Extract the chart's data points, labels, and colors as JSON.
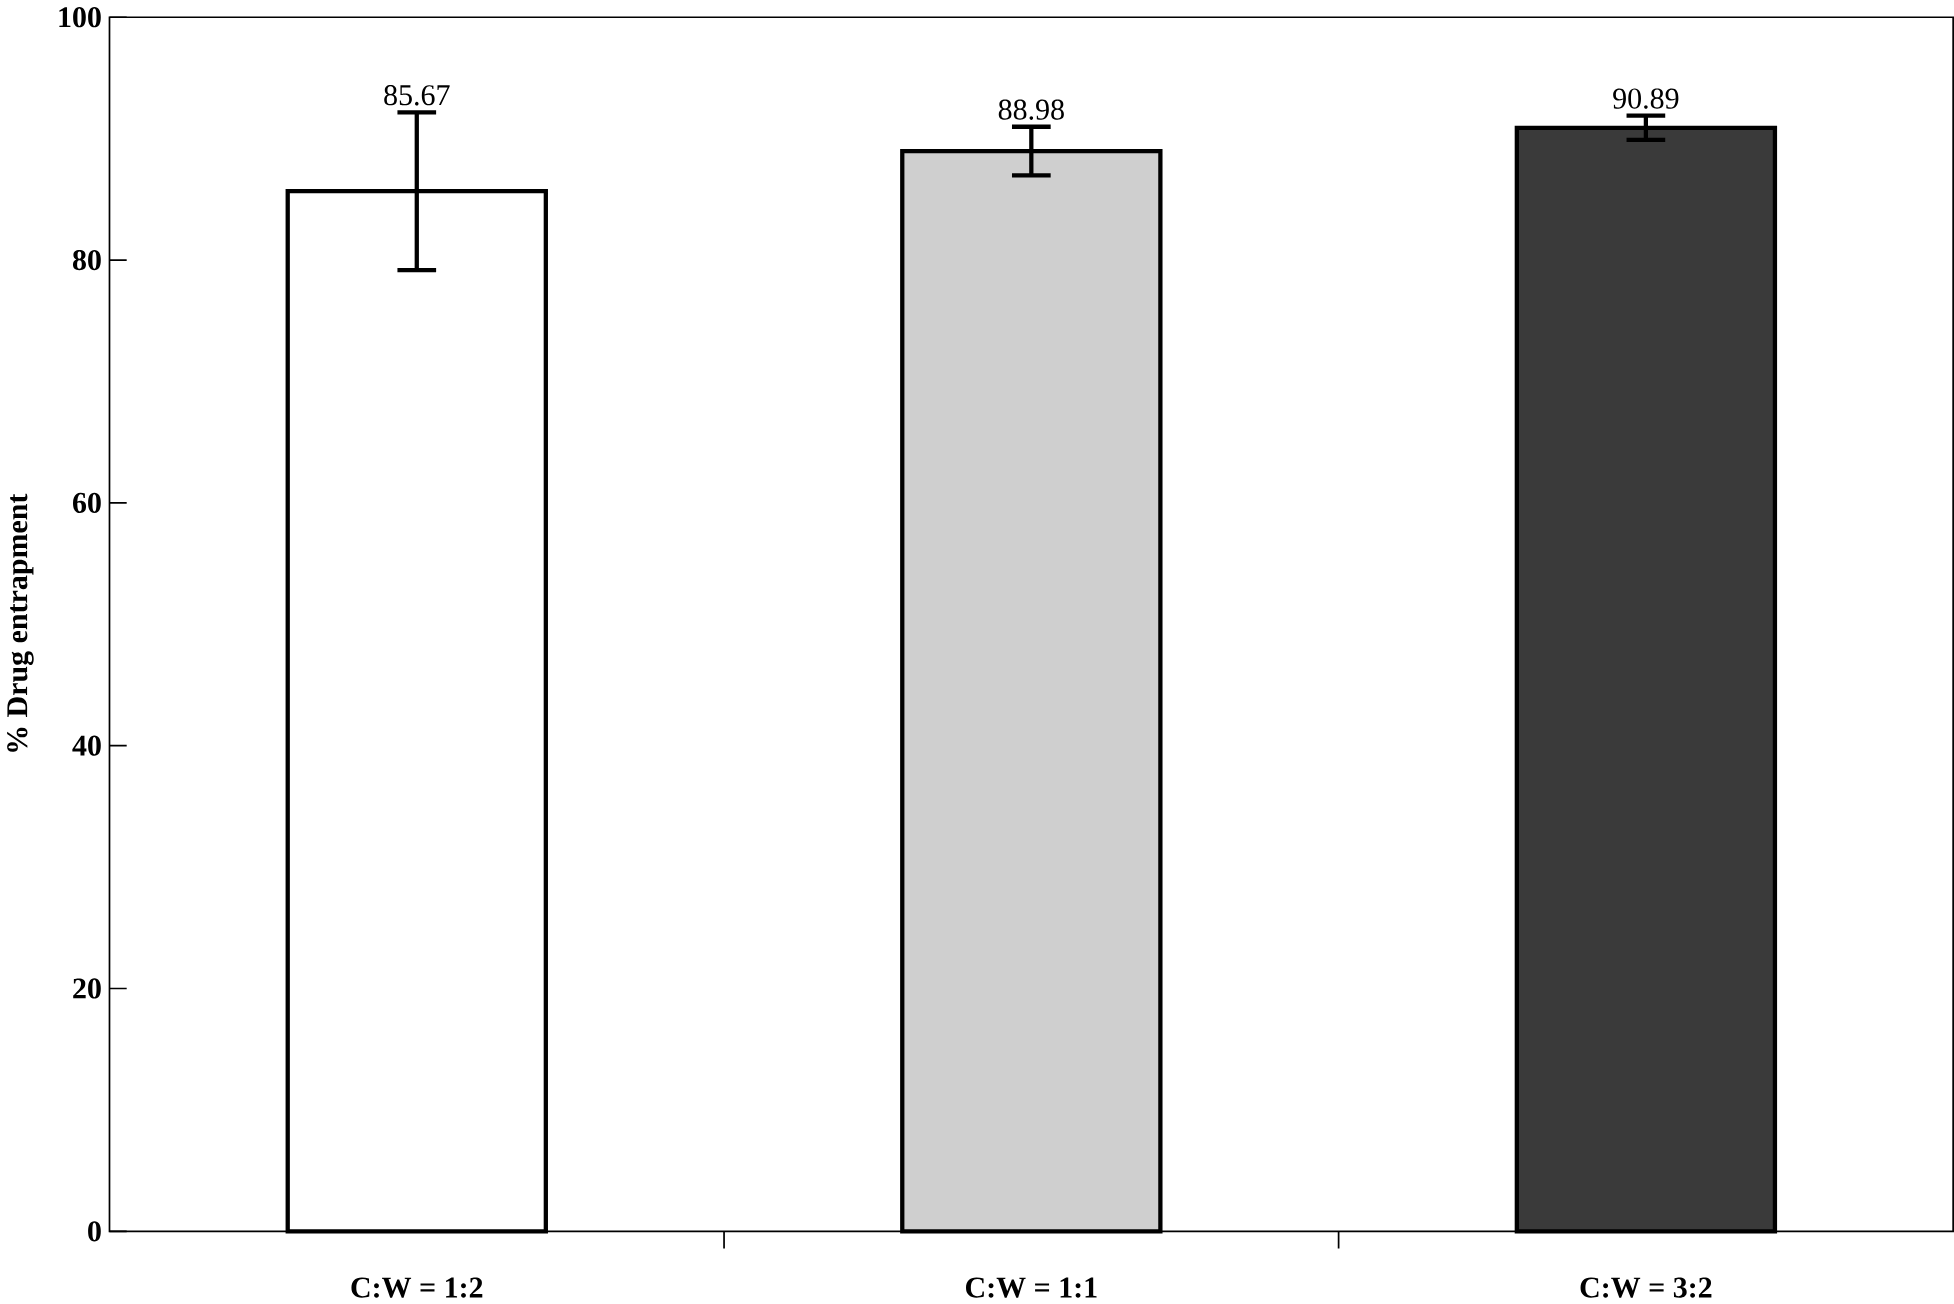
{
  "chart_data": {
    "type": "bar",
    "ylabel": "% Drug entrapment",
    "categories": [
      "C:W = 1:2",
      "C:W = 1:1",
      "C:W = 3:2"
    ],
    "values": [
      85.67,
      88.98,
      90.89
    ],
    "errors": [
      6.5,
      2,
      1
    ],
    "colors": [
      "#ffffff",
      "#cfcfcf",
      "#3a3a3a"
    ],
    "data_labels": true,
    "ylim": [
      0,
      100
    ],
    "yticks": [
      0,
      20,
      40,
      60,
      80,
      100
    ],
    "grid": false
  }
}
